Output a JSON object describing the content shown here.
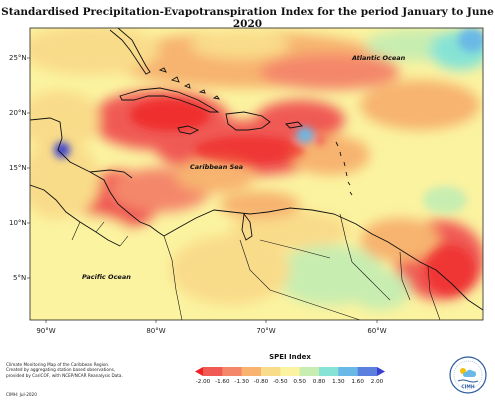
{
  "title": "Standardised Precipitation-Evapotranspiration Index for the period January to June 2020",
  "latitude_labels": [
    "25°N",
    "20°N",
    "15°N",
    "10°N",
    "5°N"
  ],
  "longitude_labels": [
    "90°W",
    "80°W",
    "70°W",
    "60°W"
  ],
  "place_labels": {
    "atlantic": "Atlantic Ocean",
    "caribbean": "Caribbean Sea",
    "pacific": "Pacific Ocean"
  },
  "credits": {
    "line1": "Climate Monitoring Map of the Caribbean Region.",
    "line2": "Created by aggregating station based observations,",
    "line3": "provided by CariCOF, with NCEP/NCAR Reanalysis Data.",
    "date": "CIMH: Jul-2020"
  },
  "legend": {
    "title": "SPEI Index",
    "ticks": [
      "-2.00",
      "-1.60",
      "-1.30",
      "-0.80",
      "-0.50",
      "0.50",
      "0.80",
      "1.30",
      "1.60",
      "2.00"
    ],
    "colors": [
      "#ee2222",
      "#f05a55",
      "#f4876a",
      "#f7b36f",
      "#f9dc8a",
      "#fbf3a0",
      "#c8edb0",
      "#86e3d5",
      "#6ab8e6",
      "#5a7fdf",
      "#3b3fd0"
    ]
  },
  "logo": {
    "text": "CIMH"
  }
}
